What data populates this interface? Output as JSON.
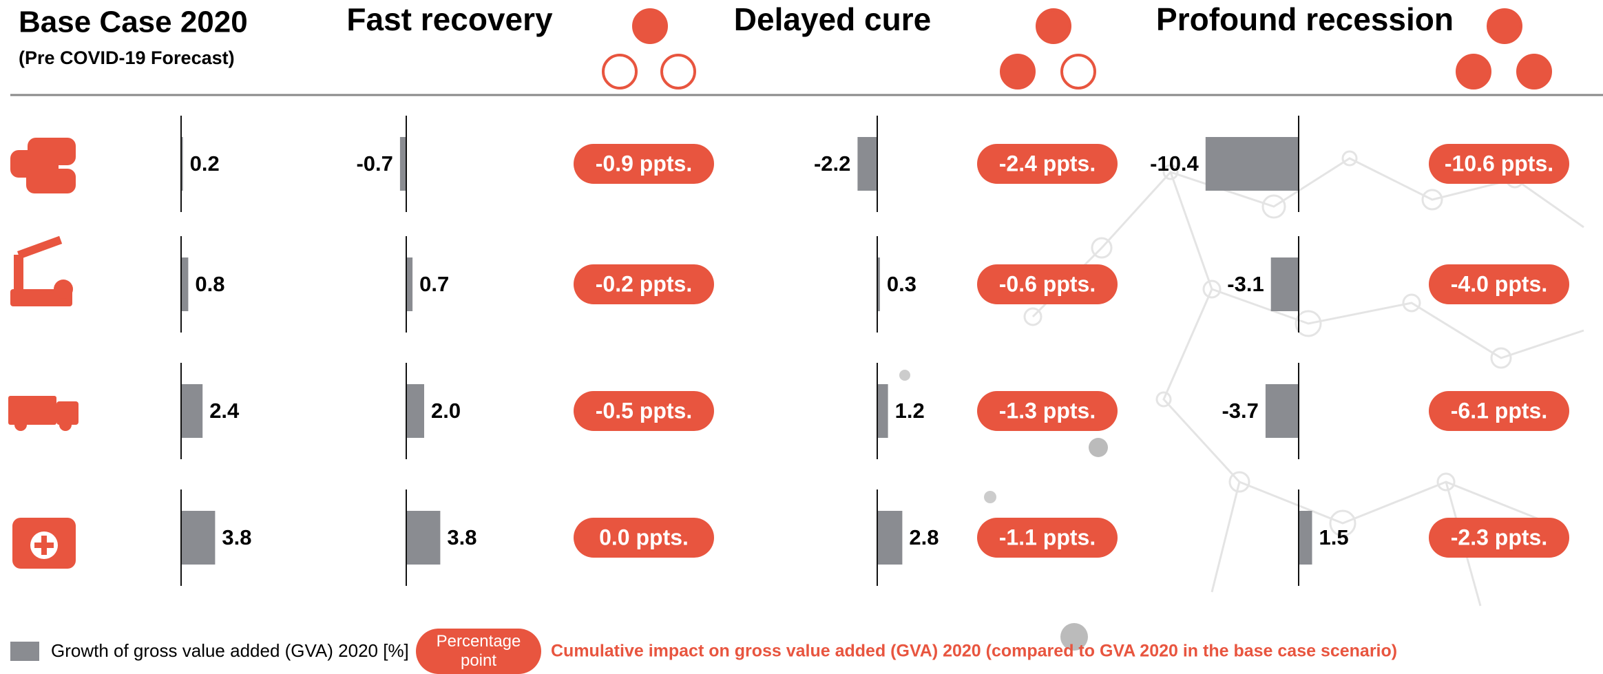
{
  "chart_data": [
    {
      "type": "bar",
      "title": "Base Case 2020",
      "subtitle": "(Pre COVID-19 Forecast)",
      "categories": [
        null,
        null,
        null,
        null
      ],
      "values": [
        0.2,
        0.8,
        2.4,
        3.8
      ],
      "value_labels": [
        "0.2",
        "0.8",
        "2.4",
        "3.8"
      ],
      "color": "#8a8c91"
    },
    {
      "type": "bar",
      "title": "Fast recovery",
      "categories": [
        null,
        null,
        null,
        null
      ],
      "values": [
        -0.7,
        0.7,
        2.0,
        3.8
      ],
      "value_labels": [
        "-0.7",
        "0.7",
        "2.0",
        "3.8"
      ],
      "color": "#8a8c91",
      "impact": {
        "values": [
          -0.9,
          -0.2,
          -0.5,
          0.0
        ],
        "value_labels": [
          "-0.9 ppts.",
          "-0.2 ppts.",
          "-0.5 ppts.",
          "0.0 ppts."
        ],
        "color": "#e8553f"
      }
    },
    {
      "type": "bar",
      "title": "Delayed cure",
      "categories": [
        null,
        null,
        null,
        null
      ],
      "values": [
        -2.2,
        0.3,
        1.2,
        2.8
      ],
      "value_labels": [
        "-2.2",
        "0.3",
        "1.2",
        "2.8"
      ],
      "color": "#8a8c91",
      "impact": {
        "values": [
          -2.4,
          -0.6,
          -1.3,
          -1.1
        ],
        "value_labels": [
          "-2.4 ppts.",
          "-0.6 ppts.",
          "-1.3 ppts.",
          "-1.1 ppts."
        ],
        "color": "#e8553f"
      }
    },
    {
      "type": "bar",
      "title": "Profound recession",
      "categories": [
        null,
        null,
        null,
        null
      ],
      "values": [
        -10.4,
        -3.1,
        -3.7,
        1.5
      ],
      "value_labels": [
        "-10.4",
        "-3.1",
        "-3.7",
        "1.5"
      ],
      "color": "#8a8c91",
      "impact": {
        "values": [
          -10.6,
          -4.0,
          -6.1,
          -2.3
        ],
        "value_labels": [
          "-10.6 ppts.",
          "-4.0 ppts.",
          "-6.1 ppts.",
          "-2.3 ppts."
        ],
        "color": "#e8553f"
      }
    }
  ],
  "legend": {
    "bar_label": "Growth of gross value added (GVA) 2020 [%]",
    "pill_label": "Percentage point",
    "impact_label": "Cumulative impact on gross value added (GVA) 2020 (compared to GVA 2020 in the base case scenario)"
  }
}
